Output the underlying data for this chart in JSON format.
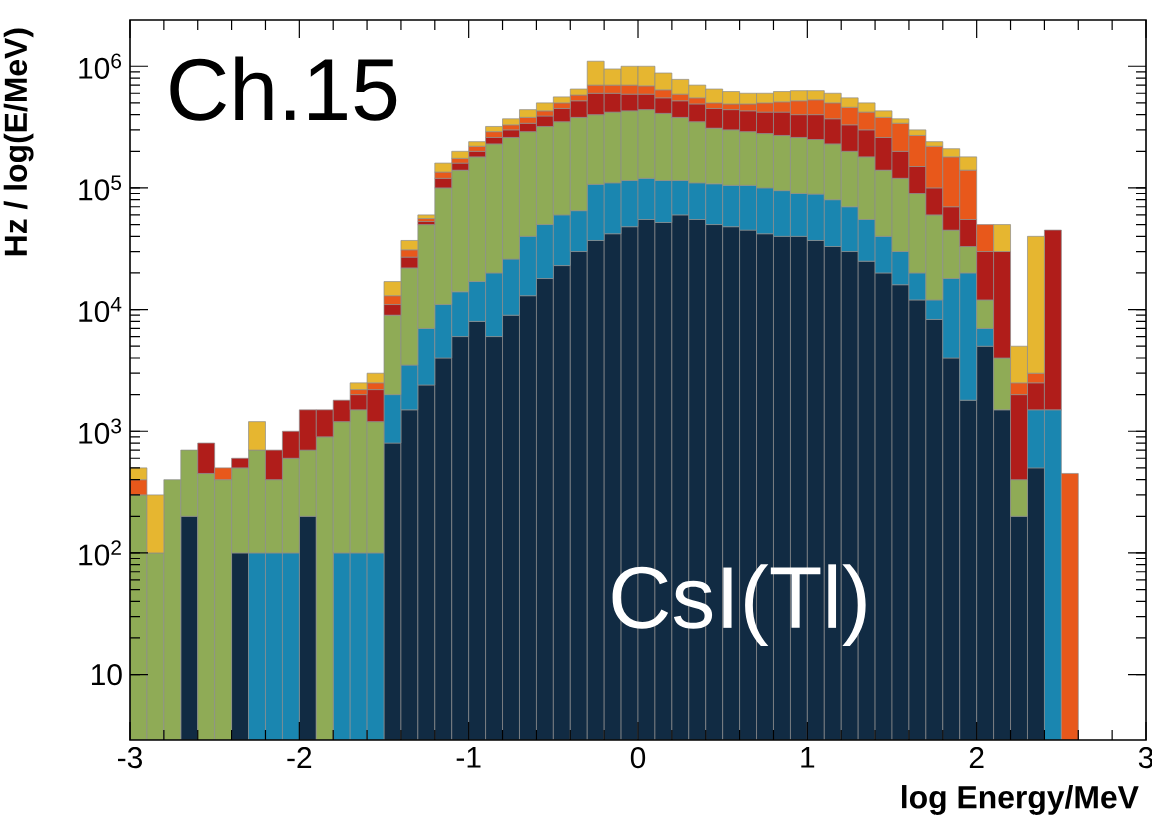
{
  "chart_data": {
    "type": "bar",
    "xlabel": "log Energy/MeV",
    "ylabel": "Hz / log(E/MeV)",
    "annotations": [
      "Ch.15",
      "CsI(Tl)"
    ],
    "stacked": true,
    "x": [
      -2.95,
      -2.85,
      -2.75,
      -2.65,
      -2.55,
      -2.45,
      -2.35,
      -2.25,
      -2.15,
      -2.05,
      -1.95,
      -1.85,
      -1.75,
      -1.65,
      -1.55,
      -1.45,
      -1.35,
      -1.25,
      -1.15,
      -1.05,
      -0.95,
      -0.85,
      -0.75,
      -0.65,
      -0.55,
      -0.45,
      -0.35,
      -0.25,
      -0.15,
      -0.05,
      0.05,
      0.15,
      0.25,
      0.35,
      0.45,
      0.55,
      0.65,
      0.75,
      0.85,
      0.95,
      1.05,
      1.15,
      1.25,
      1.35,
      1.45,
      1.55,
      1.65,
      1.75,
      1.85,
      1.95,
      2.05,
      2.15,
      2.25,
      2.35,
      2.45,
      2.55
    ],
    "series": [
      {
        "color": "#112b43",
        "values": [
          null,
          null,
          null,
          200,
          null,
          null,
          100,
          null,
          null,
          null,
          200,
          null,
          null,
          null,
          null,
          800,
          1500,
          2400,
          4000,
          6000,
          8000,
          6000,
          9000,
          13000,
          18000,
          23000,
          30000,
          37000,
          42000,
          48000,
          55000,
          52000,
          60000,
          55000,
          50000,
          48000,
          45000,
          42000,
          40000,
          40000,
          37000,
          33000,
          30000,
          25000,
          20000,
          16000,
          12000,
          8300,
          4000,
          1800,
          5000,
          1500,
          200,
          500,
          null,
          null
        ]
      },
      {
        "color": "#1a86b0",
        "values": [
          null,
          null,
          null,
          null,
          null,
          null,
          null,
          100,
          100,
          100,
          null,
          null,
          100,
          100,
          100,
          1200,
          2000,
          4600,
          7000,
          8000,
          9000,
          14000,
          17000,
          27000,
          32000,
          37000,
          35000,
          70000,
          68000,
          67000,
          65000,
          63000,
          55000,
          55000,
          58000,
          57000,
          60000,
          58000,
          55000,
          50000,
          52000,
          47000,
          40000,
          30000,
          20000,
          14000,
          8000,
          3700,
          14000,
          18200,
          2000,
          null,
          null,
          1000,
          1500,
          null
        ]
      },
      {
        "color": "#8fab56",
        "values": [
          300,
          100,
          400,
          500,
          450,
          400,
          400,
          600,
          300,
          500,
          500,
          900,
          1100,
          1400,
          1100,
          7000,
          18500,
          43000,
          89000,
          126000,
          163000,
          210000,
          234000,
          250000,
          270000,
          290000,
          315000,
          293000,
          310000,
          315000,
          320000,
          295000,
          265000,
          240000,
          202000,
          195000,
          185000,
          180000,
          175000,
          170000,
          161000,
          150000,
          130000,
          125000,
          100000,
          90000,
          70000,
          48000,
          27000,
          13000,
          5000,
          2500,
          200,
          null,
          null,
          null
        ]
      },
      {
        "color": "#b01d1a",
        "values": [
          null,
          null,
          null,
          null,
          350,
          null,
          100,
          null,
          300,
          400,
          800,
          600,
          600,
          500,
          1000,
          2000,
          5000,
          3000,
          20000,
          20000,
          20000,
          30000,
          40000,
          50000,
          70000,
          100000,
          140000,
          200000,
          180000,
          160000,
          150000,
          140000,
          140000,
          140000,
          140000,
          140000,
          140000,
          140000,
          150000,
          140000,
          150000,
          140000,
          130000,
          120000,
          120000,
          80000,
          60000,
          40000,
          25000,
          22000,
          18000,
          26000,
          1600,
          1000,
          43500,
          null
        ]
      },
      {
        "color": "#e8581b",
        "values": [
          100,
          null,
          null,
          null,
          null,
          100,
          null,
          null,
          null,
          null,
          null,
          null,
          null,
          200,
          300,
          2000,
          4000,
          3000,
          15000,
          15000,
          20000,
          30000,
          30000,
          40000,
          40000,
          50000,
          60000,
          100000,
          100000,
          110000,
          100000,
          90000,
          70000,
          60000,
          50000,
          50000,
          60000,
          80000,
          90000,
          120000,
          130000,
          130000,
          130000,
          120000,
          120000,
          140000,
          120000,
          120000,
          110000,
          85000,
          20000,
          null,
          500,
          500,
          null,
          450
        ]
      },
      {
        "color": "#e6b630",
        "values": [
          100,
          200,
          null,
          null,
          null,
          null,
          null,
          500,
          null,
          null,
          null,
          null,
          null,
          300,
          500,
          4000,
          6000,
          4000,
          25000,
          25000,
          20000,
          30000,
          40000,
          60000,
          70000,
          60000,
          70000,
          400000,
          250000,
          300000,
          310000,
          240000,
          190000,
          150000,
          150000,
          130000,
          110000,
          100000,
          110000,
          110000,
          100000,
          100000,
          90000,
          80000,
          50000,
          30000,
          30000,
          20000,
          30000,
          40000,
          null,
          20000,
          2500,
          37000,
          null,
          null
        ]
      }
    ],
    "log": "y",
    "xlim": [
      -3,
      3
    ],
    "ylim": [
      2.9,
      2400000
    ],
    "xticks": [
      -3,
      -2,
      -1,
      0,
      1,
      2,
      3
    ],
    "yticks": [
      10,
      {
        "value": 100,
        "label": "10$^{2}$"
      },
      {
        "value": 1000,
        "label": "10$^{3}$"
      },
      {
        "value": 10000,
        "label": "10$^{4}$"
      },
      {
        "value": 100000,
        "label": "10$^{5}$"
      },
      {
        "value": 1000000,
        "label": "10$^{6}$"
      }
    ]
  }
}
